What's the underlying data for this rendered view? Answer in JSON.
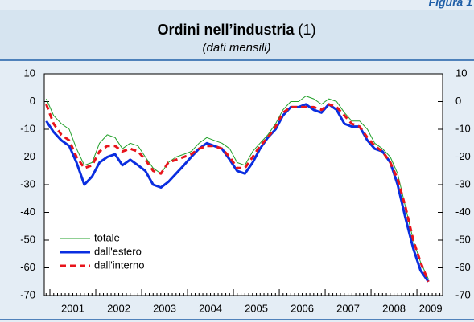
{
  "figure_label": "Figura 1",
  "chart_data": {
    "type": "line",
    "title": "Ordini nell’industria",
    "title_note": "(1)",
    "subtitle": "(dati mensili)",
    "x": [
      2000.92,
      2001.08,
      2001.25,
      2001.42,
      2001.58,
      2001.75,
      2001.92,
      2002.08,
      2002.25,
      2002.42,
      2002.58,
      2002.75,
      2002.92,
      2003.08,
      2003.25,
      2003.42,
      2003.58,
      2003.75,
      2003.92,
      2004.08,
      2004.25,
      2004.42,
      2004.58,
      2004.75,
      2004.92,
      2005.08,
      2005.25,
      2005.42,
      2005.58,
      2005.75,
      2005.92,
      2006.08,
      2006.25,
      2006.42,
      2006.58,
      2006.75,
      2006.92,
      2007.08,
      2007.25,
      2007.42,
      2007.58,
      2007.75,
      2007.92,
      2008.08,
      2008.25,
      2008.42,
      2008.58,
      2008.75,
      2008.92,
      2009.08,
      2009.25
    ],
    "series": [
      {
        "name": "totale",
        "color": "#22a02a",
        "width": 1,
        "dash": false,
        "values": [
          1,
          -5,
          -8,
          -10,
          -17,
          -23,
          -22,
          -15,
          -12,
          -13,
          -17,
          -15,
          -16,
          -20,
          -24,
          -26,
          -22,
          -20,
          -19,
          -18,
          -15,
          -13,
          -14,
          -15,
          -17,
          -22,
          -23,
          -18,
          -15,
          -12,
          -8,
          -3,
          0,
          0,
          2,
          1,
          -1,
          1,
          0,
          -4,
          -7,
          -7,
          -10,
          -15,
          -17,
          -20,
          -26,
          -38,
          -50,
          -58,
          -64
        ]
      },
      {
        "name": "dall'estero",
        "color": "#0a2ee0",
        "width": 3,
        "dash": false,
        "values": [
          -7,
          -11,
          -14,
          -16,
          -22,
          -30,
          -27,
          -22,
          -20,
          -19,
          -23,
          -21,
          -23,
          -25,
          -30,
          -31,
          -29,
          -26,
          -23,
          -20,
          -17,
          -15,
          -16,
          -17,
          -21,
          -25,
          -26,
          -22,
          -17,
          -13,
          -10,
          -5,
          -2,
          -2,
          -1,
          -3,
          -4,
          -1,
          -3,
          -8,
          -9,
          -9,
          -14,
          -17,
          -18,
          -22,
          -30,
          -42,
          -53,
          -61,
          -65
        ]
      },
      {
        "name": "dall'interno",
        "color": "#e8141b",
        "width": 3,
        "dash": true,
        "values": [
          -1,
          -8,
          -12,
          -14,
          -20,
          -24,
          -23,
          -18,
          -16,
          -16,
          -18,
          -17,
          -18,
          -21,
          -25,
          -26,
          -22,
          -21,
          -20,
          -19,
          -17,
          -16,
          -16,
          -17,
          -20,
          -24,
          -24,
          -20,
          -16,
          -13,
          -9,
          -4,
          -2,
          -2,
          -2,
          -2,
          -3,
          -1,
          -2,
          -5,
          -8,
          -9,
          -13,
          -16,
          -18,
          -22,
          -28,
          -38,
          -50,
          -58,
          -65
        ]
      }
    ],
    "xlim": [
      2000.877,
      2009.56
    ],
    "xticks": [
      {
        "value": 2001.5,
        "label": "2001"
      },
      {
        "value": 2002.5,
        "label": "2002"
      },
      {
        "value": 2003.5,
        "label": "2003"
      },
      {
        "value": 2004.5,
        "label": "2004"
      },
      {
        "value": 2005.5,
        "label": "2005"
      },
      {
        "value": 2006.5,
        "label": "2006"
      },
      {
        "value": 2007.5,
        "label": "2007"
      },
      {
        "value": 2008.5,
        "label": "2008"
      },
      {
        "value": 2009.3,
        "label": "2009"
      }
    ],
    "ylim": [
      -70,
      10
    ],
    "yticks": [
      10,
      0,
      -10,
      -20,
      -30,
      -40,
      -50,
      -60,
      -70
    ],
    "legend": "lower-left",
    "grid": false
  }
}
